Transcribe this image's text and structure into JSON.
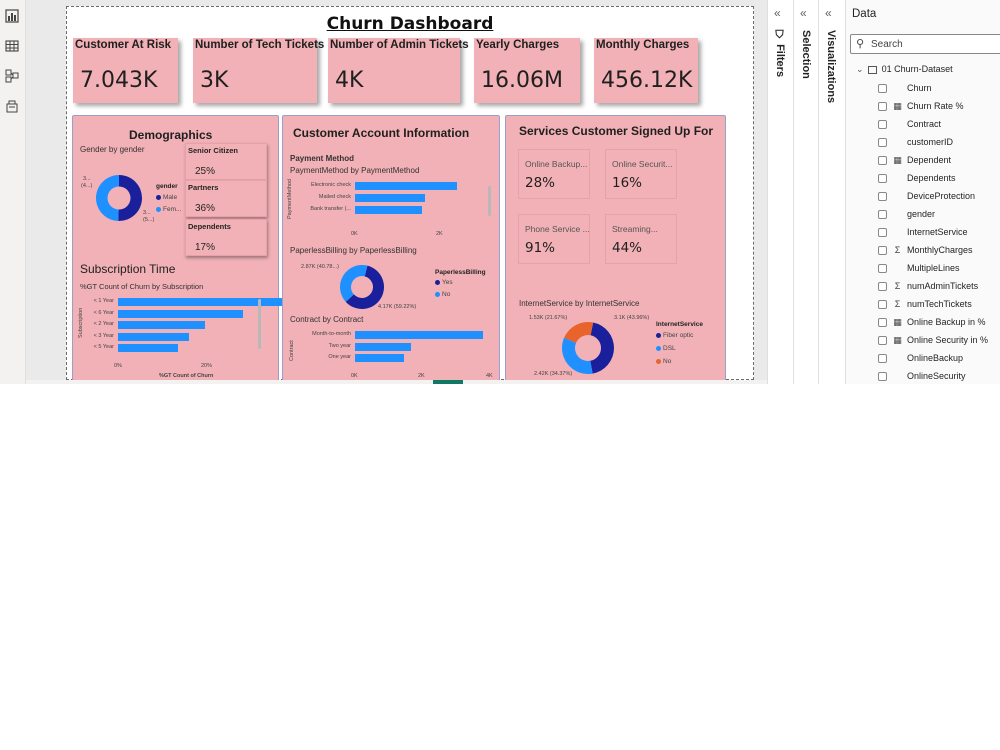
{
  "title": "Churn Dashboard",
  "kpis": [
    {
      "label": "Customer At Risk",
      "value": "7.043K"
    },
    {
      "label": "Number of Tech Tickets",
      "value": "3K"
    },
    {
      "label": "Number of Admin Tickets",
      "value": "4K"
    },
    {
      "label": "Yearly Charges",
      "value": "16.06M"
    },
    {
      "label": "Monthly Charges",
      "value": "456.12K"
    }
  ],
  "demographics": {
    "title": "Demographics",
    "gender_chart_title": "Gender by gender",
    "gender_legend_title": "gender",
    "gender_legend": [
      "Male",
      "Fem..."
    ],
    "gender_labels": [
      "3...",
      "(4...)",
      "3...",
      "(5...)"
    ],
    "gender_data": [
      {
        "label": "Male",
        "value": 50.5,
        "color": "#1a1f9c"
      },
      {
        "label": "Female",
        "value": 49.5,
        "color": "#1e90ff"
      }
    ],
    "senior_label": "Senior Citizen",
    "senior_value": "25%",
    "partners_label": "Partners",
    "partners_value": "36%",
    "dependents_label": "Dependents",
    "dependents_value": "17%",
    "subscription_title": "Subscription Time",
    "subscription_chart_title": "%GT Count of Churn by Subscription",
    "subscription_axis_title": "Subscription",
    "subscription_x_title": "%GT Count of Churn",
    "subscription_ticks": [
      "0%",
      "20%"
    ]
  },
  "account": {
    "title": "Customer Account Information",
    "payment_section": "Payment Method",
    "payment_chart_title": "PaymentMethod by PaymentMethod",
    "payment_axis_title": "PaymentMethod",
    "payment_ticks": [
      "0K",
      "2K"
    ],
    "paperless_chart_title": "PaperlessBilling by PaperlessBilling",
    "paperless_legend_title": "PaperlessBilling",
    "paperless_legend": [
      "Yes",
      "No"
    ],
    "paperless_labels": [
      "2.87K (40.78...)",
      "4.17K (59.22%)"
    ],
    "contract_chart_title": "Contract by Contract",
    "contract_axis_title": "Contract",
    "contract_ticks": [
      "0K",
      "2K",
      "4K"
    ]
  },
  "services": {
    "title": "Services Customer Signed Up For",
    "cards": [
      {
        "label": "Online Backup...",
        "value": "28%"
      },
      {
        "label": "Online Securit...",
        "value": "16%"
      },
      {
        "label": "Phone Service ...",
        "value": "91%"
      },
      {
        "label": "Streaming...",
        "value": "44%"
      }
    ],
    "internet_chart_title": "InternetService by InternetService",
    "internet_legend_title": "InternetService",
    "internet_legend": [
      "Fiber optic",
      "DSL",
      "No"
    ],
    "internet_labels": [
      "1.53K (21.67%)",
      "3.1K (43.96%)",
      "2.42K (34.37%)"
    ]
  },
  "chart_data": [
    {
      "type": "pie",
      "title": "Gender by gender",
      "labels": [
        "Male",
        "Female"
      ],
      "values": [
        50.5,
        49.5
      ]
    },
    {
      "type": "bar",
      "title": "%GT Count of Churn by Subscription",
      "xlabel": "%GT Count of Churn",
      "ylabel": "Subscription",
      "categories": [
        "< 1 Year",
        "< 6 Year",
        "< 2 Year",
        "< 3 Year",
        "< 5 Year"
      ],
      "values": [
        32,
        23,
        16,
        13,
        11
      ],
      "xlim": [
        0,
        35
      ]
    },
    {
      "type": "bar",
      "title": "PaymentMethod by PaymentMethod",
      "ylabel": "PaymentMethod",
      "categories": [
        "Electronic check",
        "Mailed check",
        "Bank transfer (..."
      ],
      "values": [
        2365,
        1612,
        1544
      ],
      "xlim": [
        0,
        3000
      ]
    },
    {
      "type": "pie",
      "title": "PaperlessBilling by PaperlessBilling",
      "labels": [
        "Yes",
        "No"
      ],
      "values": [
        4170,
        2870
      ]
    },
    {
      "type": "bar",
      "title": "Contract by Contract",
      "ylabel": "Contract",
      "categories": [
        "Month-to-month",
        "Two year",
        "One year"
      ],
      "values": [
        3875,
        1695,
        1473
      ],
      "xlim": [
        0,
        4000
      ]
    },
    {
      "type": "pie",
      "title": "InternetService by InternetService",
      "labels": [
        "Fiber optic",
        "DSL",
        "No"
      ],
      "values": [
        3100,
        2420,
        1530
      ]
    }
  ],
  "colors": {
    "card": "#f1b1b6",
    "dark_blue": "#1a1f9c",
    "blue": "#1e90ff",
    "orange": "#e8642c"
  },
  "panes": {
    "filters": "Filters",
    "selection": "Selection",
    "visualizations": "Visualizations"
  },
  "data_pane": {
    "title": "Data",
    "search_placeholder": "Search",
    "table": "01 Churn-Dataset",
    "fields": [
      {
        "name": "Churn",
        "icon": ""
      },
      {
        "name": "Churn Rate %",
        "icon": "calc"
      },
      {
        "name": "Contract",
        "icon": ""
      },
      {
        "name": "customerID",
        "icon": ""
      },
      {
        "name": "Dependent",
        "icon": "calc"
      },
      {
        "name": "Dependents",
        "icon": ""
      },
      {
        "name": "DeviceProtection",
        "icon": ""
      },
      {
        "name": "gender",
        "icon": ""
      },
      {
        "name": "InternetService",
        "icon": ""
      },
      {
        "name": "MonthlyCharges",
        "icon": "sigma"
      },
      {
        "name": "MultipleLines",
        "icon": ""
      },
      {
        "name": "numAdminTickets",
        "icon": "sigma"
      },
      {
        "name": "numTechTickets",
        "icon": "sigma"
      },
      {
        "name": "Online Backup in %",
        "icon": "calc"
      },
      {
        "name": "Online Security in %",
        "icon": "calc"
      },
      {
        "name": "OnlineBackup",
        "icon": ""
      },
      {
        "name": "OnlineSecurity",
        "icon": ""
      }
    ]
  }
}
